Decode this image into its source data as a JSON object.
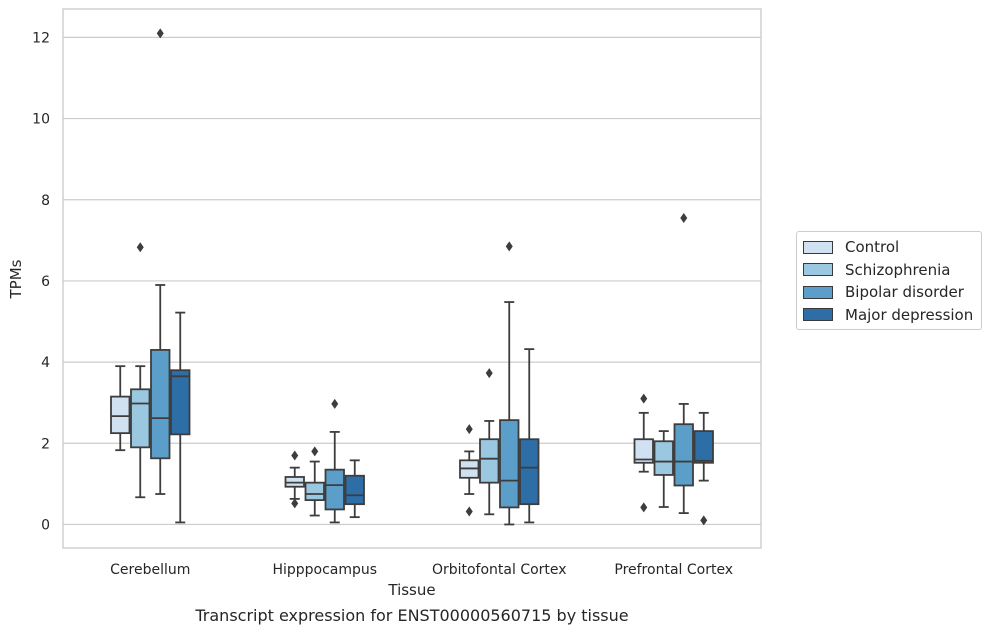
{
  "chart_data": {
    "type": "box",
    "caption": "Transcript expression for ENST00000560715 by tissue",
    "xlabel": "Tissue",
    "ylabel": "TPMs",
    "ylim": [
      -0.58,
      12.7
    ],
    "yticks": [
      0,
      2,
      4,
      6,
      8,
      10,
      12
    ],
    "grid": "horizontal",
    "legend_position": "right",
    "categories": [
      "Cerebellum",
      "Hipppocampus",
      "Orbitofontal Cortex",
      "Prefrontal Cortex"
    ],
    "series": [
      {
        "name": "Control",
        "color": "#d0e1f2",
        "boxes": [
          {
            "whisker_low": 1.83,
            "q1": 2.25,
            "median": 2.67,
            "q3": 3.15,
            "whisker_high": 3.9,
            "outliers": []
          },
          {
            "whisker_low": 0.63,
            "q1": 0.93,
            "median": 1.03,
            "q3": 1.17,
            "whisker_high": 1.4,
            "outliers": [
              1.7,
              0.52
            ]
          },
          {
            "whisker_low": 0.75,
            "q1": 1.15,
            "median": 1.38,
            "q3": 1.58,
            "whisker_high": 1.8,
            "outliers": [
              2.35,
              0.32
            ]
          },
          {
            "whisker_low": 1.3,
            "q1": 1.52,
            "median": 1.6,
            "q3": 2.1,
            "whisker_high": 2.75,
            "outliers": [
              3.1,
              0.42
            ]
          }
        ]
      },
      {
        "name": "Schizophrenia",
        "color": "#9ac8e0",
        "boxes": [
          {
            "whisker_low": 0.67,
            "q1": 1.9,
            "median": 2.98,
            "q3": 3.33,
            "whisker_high": 3.9,
            "outliers": [
              6.83
            ]
          },
          {
            "whisker_low": 0.22,
            "q1": 0.6,
            "median": 0.75,
            "q3": 1.03,
            "whisker_high": 1.55,
            "outliers": [
              1.8
            ]
          },
          {
            "whisker_low": 0.25,
            "q1": 1.03,
            "median": 1.62,
            "q3": 2.1,
            "whisker_high": 2.55,
            "outliers": [
              3.73
            ]
          },
          {
            "whisker_low": 0.43,
            "q1": 1.22,
            "median": 1.55,
            "q3": 2.05,
            "whisker_high": 2.3,
            "outliers": []
          }
        ]
      },
      {
        "name": "Bipolar disorder",
        "color": "#5a9ec9",
        "boxes": [
          {
            "whisker_low": 0.75,
            "q1": 1.63,
            "median": 2.62,
            "q3": 4.3,
            "whisker_high": 5.9,
            "outliers": [
              12.1
            ]
          },
          {
            "whisker_low": 0.05,
            "q1": 0.37,
            "median": 0.97,
            "q3": 1.35,
            "whisker_high": 2.28,
            "outliers": [
              2.97
            ]
          },
          {
            "whisker_low": 0.0,
            "q1": 0.42,
            "median": 1.08,
            "q3": 2.57,
            "whisker_high": 5.48,
            "outliers": [
              6.85
            ]
          },
          {
            "whisker_low": 0.28,
            "q1": 0.96,
            "median": 1.55,
            "q3": 2.47,
            "whisker_high": 2.97,
            "outliers": [
              7.55
            ]
          }
        ]
      },
      {
        "name": "Major depression",
        "color": "#2d6ea7",
        "boxes": [
          {
            "whisker_low": 0.05,
            "q1": 2.22,
            "median": 3.65,
            "q3": 3.8,
            "whisker_high": 5.22,
            "outliers": []
          },
          {
            "whisker_low": 0.18,
            "q1": 0.5,
            "median": 0.72,
            "q3": 1.2,
            "whisker_high": 1.58,
            "outliers": []
          },
          {
            "whisker_low": 0.05,
            "q1": 0.5,
            "median": 1.4,
            "q3": 2.1,
            "whisker_high": 4.32,
            "outliers": []
          },
          {
            "whisker_low": 1.08,
            "q1": 1.52,
            "median": 1.57,
            "q3": 2.3,
            "whisker_high": 2.75,
            "outliers": [
              0.1
            ]
          }
        ]
      }
    ]
  }
}
